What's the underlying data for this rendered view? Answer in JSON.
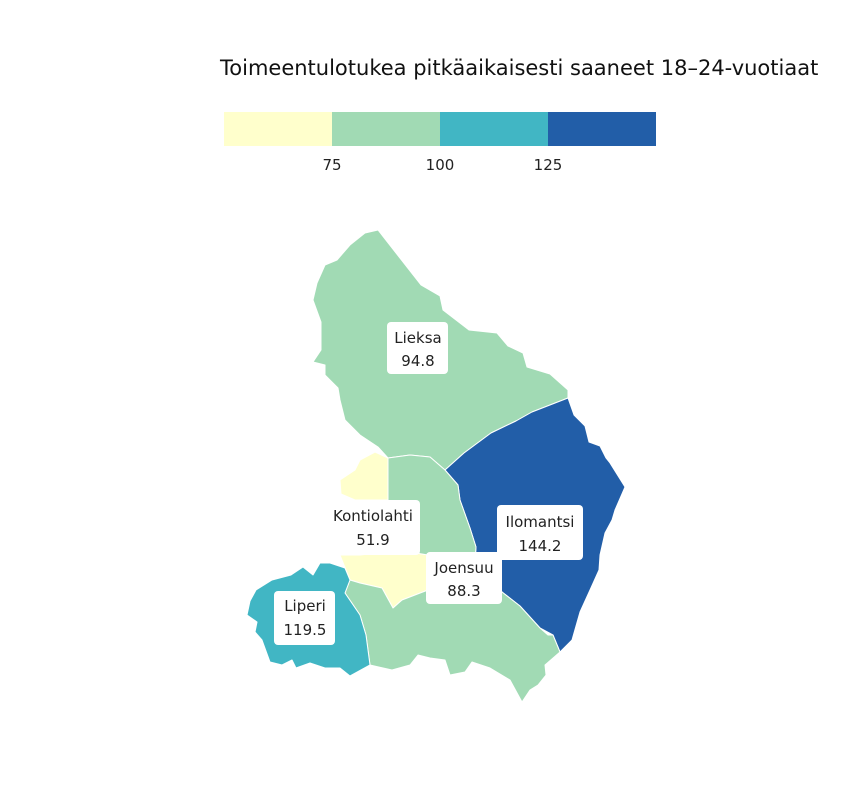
{
  "title": "Toimeentulotukea pitkäaikaisesti saaneet 18–24-vuotiaat",
  "legend": {
    "colors": [
      "#ffffcc",
      "#a1dab4",
      "#41b6c4",
      "#225ea8"
    ],
    "ticks": [
      "75",
      "100",
      "125"
    ]
  },
  "regions": [
    {
      "name": "Lieksa",
      "value": "94.8",
      "color": "#a1dab4"
    },
    {
      "name": "Ilomantsi",
      "value": "144.2",
      "color": "#225ea8"
    },
    {
      "name": "Kontiolahti",
      "value": "51.9",
      "color": "#ffffcc"
    },
    {
      "name": "Joensuu",
      "value": "88.3",
      "color": "#a1dab4"
    },
    {
      "name": "Liperi",
      "value": "119.5",
      "color": "#41b6c4"
    }
  ]
}
